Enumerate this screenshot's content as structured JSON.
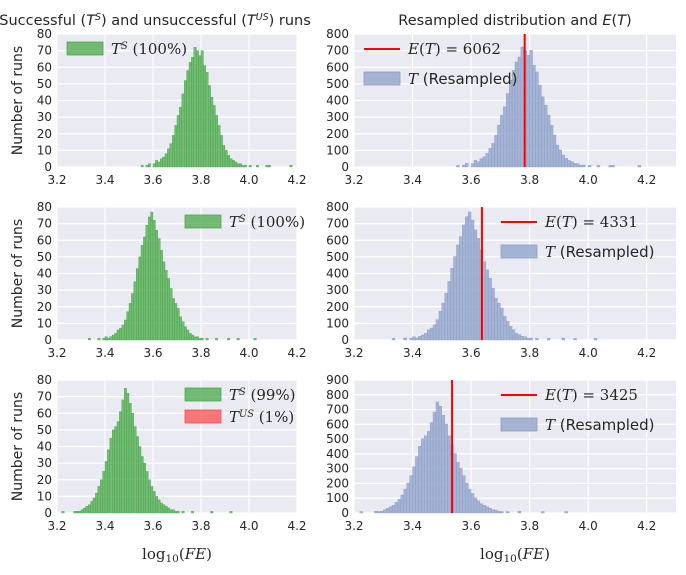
{
  "colors": {
    "successful": "#4aa84a",
    "unsuccessful": "#ff4d4d",
    "resampled": "#8c9fc8",
    "expected": "#ff0000"
  },
  "chart_data": [
    {
      "panel": "row1-left",
      "type": "bar",
      "title": "Successful (T^S) and unsuccessful (T^US) runs",
      "xlabel": "",
      "ylabel": "Number of runs",
      "xlim": [
        3.2,
        4.2
      ],
      "ylim": [
        0,
        80
      ],
      "xticks": [
        "3.2",
        "3.4",
        "3.6",
        "3.8",
        "4.0",
        "4.2"
      ],
      "yticks": [
        "0",
        "10",
        "20",
        "30",
        "40",
        "50",
        "60",
        "70",
        "80"
      ],
      "grid": true,
      "legend_position": "upper-left",
      "bin_start": 3.55,
      "bin_width": 0.01,
      "series": [
        {
          "name": "T^S (100%)",
          "color_key": "successful",
          "values": [
            1,
            0,
            1,
            2,
            0,
            2,
            4,
            3,
            5,
            6,
            8,
            11,
            14,
            19,
            25,
            31,
            36,
            44,
            52,
            58,
            63,
            66,
            72,
            70,
            67,
            70,
            61,
            57,
            49,
            42,
            37,
            31,
            25,
            19,
            13,
            10,
            7,
            5,
            4,
            3,
            2,
            2,
            1,
            1,
            0,
            1,
            0,
            0,
            1,
            0,
            0,
            0,
            1,
            1,
            0,
            0,
            0,
            0,
            0,
            0,
            0,
            0,
            1
          ]
        }
      ]
    },
    {
      "panel": "row1-right",
      "type": "bar",
      "title": "Resampled distribution and E(T)",
      "xlabel": "",
      "ylabel": "",
      "xlim": [
        3.2,
        4.3
      ],
      "ylim": [
        0,
        800
      ],
      "xticks": [
        "3.2",
        "3.4",
        "3.6",
        "3.8",
        "4.0",
        "4.2"
      ],
      "yticks": [
        "0",
        "100",
        "200",
        "300",
        "400",
        "500",
        "600",
        "700",
        "800"
      ],
      "grid": true,
      "legend_position": "upper-left",
      "vline": {
        "label": "E(T) = 6062",
        "x": 3.783,
        "color_key": "expected"
      },
      "bin_start": 3.55,
      "bin_width": 0.01,
      "series": [
        {
          "name": "T (Resampled)",
          "color_key": "resampled",
          "values": [
            10,
            0,
            12,
            22,
            0,
            20,
            40,
            32,
            50,
            62,
            82,
            112,
            142,
            190,
            252,
            312,
            362,
            442,
            522,
            582,
            632,
            662,
            722,
            700,
            672,
            702,
            612,
            572,
            492,
            422,
            372,
            312,
            252,
            192,
            132,
            102,
            72,
            52,
            40,
            32,
            22,
            20,
            10,
            12,
            0,
            10,
            0,
            0,
            10,
            0,
            0,
            0,
            10,
            10,
            0,
            0,
            0,
            0,
            0,
            0,
            0,
            0,
            10
          ]
        }
      ]
    },
    {
      "panel": "row2-left",
      "type": "bar",
      "title": "",
      "xlabel": "",
      "ylabel": "Number of runs",
      "xlim": [
        3.2,
        4.2
      ],
      "ylim": [
        0,
        80
      ],
      "xticks": [
        "3.2",
        "3.4",
        "3.6",
        "3.8",
        "4.0",
        "4.2"
      ],
      "yticks": [
        "0",
        "10",
        "20",
        "30",
        "40",
        "50",
        "60",
        "70",
        "80"
      ],
      "grid": true,
      "legend_position": "upper-right",
      "bin_start": 3.33,
      "bin_width": 0.01,
      "series": [
        {
          "name": "T^S (100%)",
          "color_key": "successful",
          "values": [
            1,
            0,
            0,
            0,
            1,
            0,
            1,
            2,
            1,
            2,
            3,
            4,
            6,
            7,
            9,
            12,
            17,
            22,
            28,
            35,
            43,
            50,
            57,
            62,
            69,
            74,
            77,
            72,
            66,
            61,
            54,
            47,
            42,
            37,
            31,
            25,
            22,
            19,
            14,
            11,
            8,
            6,
            4,
            3,
            2,
            2,
            1,
            1,
            0,
            1,
            0,
            0,
            0,
            1,
            0,
            0,
            0,
            0,
            1,
            0,
            0,
            0,
            1,
            0,
            0,
            0,
            0,
            0,
            0,
            1
          ]
        }
      ]
    },
    {
      "panel": "row2-right",
      "type": "bar",
      "title": "",
      "xlabel": "",
      "ylabel": "",
      "xlim": [
        3.2,
        4.3
      ],
      "ylim": [
        0,
        800
      ],
      "xticks": [
        "3.2",
        "3.4",
        "3.6",
        "3.8",
        "4.0",
        "4.2"
      ],
      "yticks": [
        "0",
        "100",
        "200",
        "300",
        "400",
        "500",
        "600",
        "700",
        "800"
      ],
      "grid": true,
      "legend_position": "upper-right",
      "vline": {
        "label": "E(T) = 4331",
        "x": 3.637,
        "color_key": "expected"
      },
      "bin_start": 3.33,
      "bin_width": 0.01,
      "series": [
        {
          "name": "T (Resampled)",
          "color_key": "resampled",
          "values": [
            10,
            0,
            0,
            0,
            12,
            0,
            10,
            20,
            12,
            22,
            30,
            40,
            62,
            72,
            92,
            122,
            172,
            222,
            282,
            352,
            432,
            502,
            572,
            622,
            692,
            742,
            770,
            722,
            662,
            612,
            542,
            472,
            422,
            372,
            312,
            252,
            222,
            192,
            142,
            112,
            82,
            62,
            40,
            32,
            22,
            20,
            10,
            12,
            0,
            10,
            0,
            0,
            0,
            10,
            0,
            0,
            0,
            0,
            12,
            0,
            0,
            0,
            10,
            0,
            0,
            0,
            0,
            0,
            0,
            10
          ]
        }
      ]
    },
    {
      "panel": "row3-left",
      "type": "bar",
      "title": "",
      "xlabel": "log10(FE)",
      "ylabel": "Number of runs",
      "xlim": [
        3.2,
        4.2
      ],
      "ylim": [
        0,
        80
      ],
      "xticks": [
        "3.2",
        "3.4",
        "3.6",
        "3.8",
        "4.0",
        "4.2"
      ],
      "yticks": [
        "0",
        "10",
        "20",
        "30",
        "40",
        "50",
        "60",
        "70",
        "80"
      ],
      "grid": true,
      "legend_position": "upper-right",
      "bin_start": 3.22,
      "bin_width": 0.01,
      "series": [
        {
          "name": "T^S (99%)",
          "color_key": "successful",
          "values": [
            1,
            0,
            0,
            0,
            0,
            1,
            1,
            1,
            2,
            3,
            4,
            5,
            7,
            9,
            12,
            16,
            20,
            25,
            31,
            38,
            45,
            50,
            52,
            55,
            61,
            68,
            75,
            72,
            66,
            60,
            52,
            46,
            40,
            34,
            30,
            25,
            20,
            16,
            13,
            10,
            8,
            6,
            5,
            4,
            3,
            2,
            2,
            1,
            1,
            0,
            1,
            0,
            0,
            0,
            1,
            0,
            0,
            0,
            0,
            0,
            0,
            0,
            1,
            0,
            0,
            0,
            0,
            0,
            0,
            0,
            1
          ]
        },
        {
          "name": "T^US (1%)",
          "color_key": "unsuccessful",
          "values": [
            0,
            0,
            0,
            0,
            0,
            0,
            0,
            0,
            0,
            0,
            0,
            0,
            0,
            0,
            0,
            0,
            0,
            0,
            0,
            0,
            0,
            0,
            0,
            0,
            0,
            0,
            0,
            0,
            0,
            0,
            0,
            0,
            0,
            0,
            0,
            0,
            0,
            0,
            0,
            0,
            0,
            0,
            0,
            0,
            0,
            0,
            0,
            0,
            0,
            0,
            0,
            0,
            0,
            0,
            0,
            0,
            0,
            0,
            0,
            0,
            0,
            0,
            0,
            0,
            0,
            0,
            0,
            0,
            0,
            0,
            0
          ]
        }
      ]
    },
    {
      "panel": "row3-right",
      "type": "bar",
      "title": "",
      "xlabel": "log10(FE)",
      "ylabel": "",
      "xlim": [
        3.2,
        4.3
      ],
      "ylim": [
        0,
        900
      ],
      "xticks": [
        "3.2",
        "3.4",
        "3.6",
        "3.8",
        "4.0",
        "4.2"
      ],
      "yticks": [
        "0",
        "100",
        "200",
        "300",
        "400",
        "500",
        "600",
        "700",
        "800",
        "900"
      ],
      "grid": true,
      "legend_position": "upper-right",
      "vline": {
        "label": "E(T) = 3425",
        "x": 3.535,
        "color_key": "expected"
      },
      "bin_start": 3.22,
      "bin_width": 0.01,
      "series": [
        {
          "name": "T (Resampled)",
          "color_key": "resampled",
          "values": [
            10,
            0,
            0,
            0,
            0,
            12,
            10,
            12,
            22,
            32,
            42,
            52,
            72,
            92,
            122,
            162,
            202,
            252,
            312,
            382,
            452,
            502,
            522,
            552,
            612,
            682,
            752,
            722,
            662,
            602,
            522,
            462,
            402,
            342,
            302,
            252,
            202,
            162,
            132,
            102,
            82,
            62,
            52,
            42,
            32,
            22,
            20,
            12,
            10,
            0,
            10,
            0,
            0,
            0,
            12,
            0,
            0,
            0,
            0,
            0,
            0,
            0,
            10,
            0,
            0,
            0,
            0,
            0,
            0,
            0,
            10
          ]
        }
      ]
    }
  ]
}
